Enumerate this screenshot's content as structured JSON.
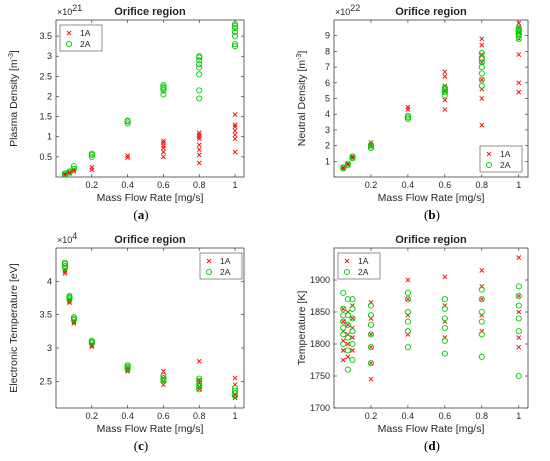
{
  "chart_data": [
    {
      "type": "scatter",
      "title": "Orifice region",
      "xlabel": "Mass Flow Rate [mg/s]",
      "ylabel": "Plasma Density [m",
      "ylabel_exp": "-3",
      "ylabel_close": "]",
      "yscale_base": "×10",
      "yscale_exp": "21",
      "caption_pre": "(",
      "caption": "a",
      "caption_post": ")",
      "xlim": [
        0,
        1.05
      ],
      "ylim": [
        0,
        3.9
      ],
      "xticks": [
        0.2,
        0.4,
        0.6,
        0.8,
        1
      ],
      "xtick_labels": [
        "0.2",
        "0.4",
        "0.6",
        "0.8",
        "1"
      ],
      "yticks": [
        0.5,
        1,
        1.5,
        2,
        2.5,
        3,
        3.5
      ],
      "ytick_labels": [
        "0.5",
        "1",
        "1.5",
        "2",
        "2.5",
        "3",
        "3.5"
      ],
      "legend_position": "top-left",
      "series": [
        {
          "name": "1A",
          "marker": "x",
          "color": "#ff0000",
          "x": [
            0.05,
            0.05,
            0.075,
            0.075,
            0.1,
            0.1,
            0.2,
            0.2,
            0.4,
            0.4,
            0.6,
            0.6,
            0.6,
            0.6,
            0.6,
            0.6,
            0.8,
            0.8,
            0.8,
            0.8,
            0.8,
            0.8,
            0.8,
            0.8,
            1,
            1,
            1,
            1,
            1,
            1,
            1
          ],
          "y": [
            0.05,
            0.08,
            0.09,
            0.12,
            0.14,
            0.18,
            0.18,
            0.24,
            0.48,
            0.53,
            0.5,
            0.62,
            0.72,
            0.78,
            0.85,
            0.9,
            0.35,
            0.55,
            0.68,
            0.8,
            0.95,
            1.0,
            1.05,
            1.1,
            0.62,
            0.95,
            1.05,
            1.15,
            1.25,
            1.3,
            1.55
          ]
        },
        {
          "name": "2A",
          "marker": "o",
          "color": "#00cc00",
          "x": [
            0.05,
            0.05,
            0.075,
            0.075,
            0.1,
            0.1,
            0.2,
            0.2,
            0.2,
            0.4,
            0.4,
            0.4,
            0.6,
            0.6,
            0.6,
            0.6,
            0.6,
            0.8,
            0.8,
            0.8,
            0.8,
            0.8,
            0.8,
            0.8,
            0.8,
            1,
            1,
            1,
            1,
            1,
            1,
            1
          ],
          "y": [
            0.06,
            0.09,
            0.11,
            0.14,
            0.2,
            0.27,
            0.5,
            0.55,
            0.58,
            1.33,
            1.38,
            1.4,
            2.05,
            2.15,
            2.2,
            2.23,
            2.28,
            1.95,
            2.15,
            2.55,
            2.72,
            2.8,
            2.9,
            2.97,
            3.0,
            3.25,
            3.3,
            3.5,
            3.6,
            3.7,
            3.75,
            3.8
          ]
        }
      ]
    },
    {
      "type": "scatter",
      "title": "Orifice region",
      "xlabel": "Mass Flow Rate [mg/s]",
      "ylabel": "Neutral Density [m",
      "ylabel_exp": "-3",
      "ylabel_close": "]",
      "yscale_base": "×10",
      "yscale_exp": "22",
      "caption_pre": "(",
      "caption": "b",
      "caption_post": ")",
      "xlim": [
        0,
        1.05
      ],
      "ylim": [
        0,
        10
      ],
      "xticks": [
        0.2,
        0.4,
        0.6,
        0.8,
        1
      ],
      "xtick_labels": [
        "0.2",
        "0.4",
        "0.6",
        "0.8",
        "1"
      ],
      "yticks": [
        1,
        2,
        3,
        4,
        5,
        6,
        7,
        8,
        9
      ],
      "ytick_labels": [
        "1",
        "2",
        "3",
        "4",
        "5",
        "6",
        "7",
        "8",
        "9"
      ],
      "legend_position": "bottom-right",
      "series": [
        {
          "name": "1A",
          "marker": "x",
          "color": "#ff0000",
          "x": [
            0.05,
            0.05,
            0.075,
            0.075,
            0.1,
            0.1,
            0.2,
            0.2,
            0.4,
            0.4,
            0.6,
            0.6,
            0.6,
            0.6,
            0.6,
            0.6,
            0.8,
            0.8,
            0.8,
            0.8,
            0.8,
            0.8,
            0.8,
            0.8,
            1,
            1,
            1,
            1,
            1,
            1,
            1
          ],
          "y": [
            0.55,
            0.6,
            0.8,
            0.85,
            1.2,
            1.3,
            2.0,
            2.2,
            4.3,
            4.45,
            4.3,
            4.9,
            5.5,
            5.8,
            6.4,
            6.7,
            3.3,
            5.0,
            5.6,
            6.2,
            7.3,
            7.8,
            8.4,
            8.8,
            5.4,
            6.0,
            7.8,
            8.8,
            9.2,
            9.5,
            9.8
          ]
        },
        {
          "name": "2A",
          "marker": "o",
          "color": "#00cc00",
          "x": [
            0.05,
            0.05,
            0.075,
            0.075,
            0.1,
            0.1,
            0.2,
            0.2,
            0.2,
            0.4,
            0.4,
            0.4,
            0.6,
            0.6,
            0.6,
            0.6,
            0.6,
            0.8,
            0.8,
            0.8,
            0.8,
            0.8,
            0.8,
            0.8,
            0.8,
            1,
            1,
            1,
            1,
            1,
            1,
            1
          ],
          "y": [
            0.55,
            0.6,
            0.75,
            0.85,
            1.2,
            1.3,
            1.85,
            1.95,
            2.05,
            3.7,
            3.8,
            3.9,
            5.2,
            5.4,
            5.5,
            5.6,
            5.7,
            5.8,
            6.2,
            6.6,
            7.0,
            7.3,
            7.5,
            7.6,
            7.9,
            8.8,
            9.0,
            9.1,
            9.2,
            9.3,
            9.4,
            9.5
          ]
        }
      ]
    },
    {
      "type": "scatter",
      "title": "Orifice region",
      "xlabel": "Mass Flow Rate [mg/s]",
      "ylabel": "Electronic Temperature [eV]",
      "ylabel_exp": "",
      "ylabel_close": "",
      "yscale_base": "×10",
      "yscale_exp": "4",
      "caption_pre": "(",
      "caption": "c",
      "caption_post": ")",
      "xlim": [
        0,
        1.05
      ],
      "ylim": [
        2.1,
        4.5
      ],
      "xticks": [
        0.2,
        0.4,
        0.6,
        0.8,
        1
      ],
      "xtick_labels": [
        "0.2",
        "0.4",
        "0.6",
        "0.8",
        "1"
      ],
      "yticks": [
        2.5,
        3,
        3.5,
        4
      ],
      "ytick_labels": [
        "2.5",
        "3",
        "3.5",
        "4"
      ],
      "legend_position": "top-right",
      "series": [
        {
          "name": "1A",
          "marker": "x",
          "color": "#ff0000",
          "x": [
            0.05,
            0.05,
            0.05,
            0.075,
            0.075,
            0.075,
            0.1,
            0.1,
            0.1,
            0.2,
            0.2,
            0.2,
            0.4,
            0.4,
            0.4,
            0.6,
            0.6,
            0.6,
            0.6,
            0.8,
            0.8,
            0.8,
            0.8,
            0.8,
            1,
            1,
            1,
            1
          ],
          "y": [
            4.12,
            4.15,
            4.18,
            3.68,
            3.7,
            3.72,
            3.37,
            3.39,
            3.41,
            3.02,
            3.04,
            3.06,
            2.65,
            2.67,
            2.7,
            2.45,
            2.5,
            2.55,
            2.65,
            2.38,
            2.42,
            2.48,
            2.52,
            2.8,
            2.25,
            2.3,
            2.45,
            2.55
          ]
        },
        {
          "name": "2A",
          "marker": "o",
          "color": "#00cc00",
          "x": [
            0.05,
            0.05,
            0.05,
            0.05,
            0.075,
            0.075,
            0.075,
            0.075,
            0.1,
            0.1,
            0.1,
            0.2,
            0.2,
            0.2,
            0.4,
            0.4,
            0.4,
            0.4,
            0.6,
            0.6,
            0.6,
            0.6,
            0.8,
            0.8,
            0.8,
            0.8,
            0.8,
            1,
            1,
            1,
            1
          ],
          "y": [
            4.2,
            4.23,
            4.26,
            4.28,
            3.73,
            3.75,
            3.77,
            3.78,
            3.42,
            3.44,
            3.46,
            3.07,
            3.09,
            3.11,
            2.68,
            2.7,
            2.72,
            2.74,
            2.5,
            2.52,
            2.55,
            2.58,
            2.38,
            2.42,
            2.46,
            2.5,
            2.54,
            2.28,
            2.32,
            2.36,
            2.4
          ]
        }
      ]
    },
    {
      "type": "scatter",
      "title": "Orifice region",
      "xlabel": "Mass Flow Rate [mg/s]",
      "ylabel": "Temperature [K]",
      "ylabel_exp": "",
      "ylabel_close": "",
      "yscale_base": "",
      "yscale_exp": "",
      "caption_pre": "(",
      "caption": "d",
      "caption_post": ")",
      "xlim": [
        0,
        1.05
      ],
      "ylim": [
        1700,
        1950
      ],
      "xticks": [
        0.2,
        0.4,
        0.6,
        0.8,
        1
      ],
      "xtick_labels": [
        "0.2",
        "0.4",
        "0.6",
        "0.8",
        "1"
      ],
      "yticks": [
        1700,
        1750,
        1800,
        1850,
        1900
      ],
      "ytick_labels": [
        "1700",
        "1750",
        "1800",
        "1850",
        "1900"
      ],
      "legend_position": "top-left",
      "series": [
        {
          "name": "1A",
          "marker": "x",
          "color": "#ff0000",
          "x": [
            0.05,
            0.05,
            0.05,
            0.05,
            0.05,
            0.05,
            0.075,
            0.075,
            0.075,
            0.075,
            0.075,
            0.1,
            0.1,
            0.1,
            0.1,
            0.1,
            0.2,
            0.2,
            0.2,
            0.2,
            0.2,
            0.2,
            0.4,
            0.4,
            0.4,
            0.4,
            0.6,
            0.6,
            0.6,
            0.6,
            0.8,
            0.8,
            0.8,
            0.8,
            0.8,
            1,
            1,
            1,
            1,
            1
          ],
          "y": [
            1775,
            1790,
            1805,
            1820,
            1835,
            1855,
            1780,
            1800,
            1815,
            1830,
            1850,
            1790,
            1810,
            1825,
            1840,
            1860,
            1745,
            1770,
            1795,
            1815,
            1840,
            1865,
            1815,
            1845,
            1870,
            1900,
            1810,
            1835,
            1860,
            1905,
            1820,
            1845,
            1870,
            1890,
            1915,
            1795,
            1810,
            1850,
            1875,
            1935
          ]
        },
        {
          "name": "2A",
          "marker": "o",
          "color": "#00cc00",
          "x": [
            0.05,
            0.05,
            0.05,
            0.05,
            0.05,
            0.05,
            0.05,
            0.075,
            0.075,
            0.075,
            0.075,
            0.075,
            0.075,
            0.1,
            0.1,
            0.1,
            0.1,
            0.1,
            0.1,
            0.2,
            0.2,
            0.2,
            0.2,
            0.2,
            0.2,
            0.4,
            0.4,
            0.4,
            0.4,
            0.4,
            0.4,
            0.6,
            0.6,
            0.6,
            0.6,
            0.6,
            0.6,
            0.8,
            0.8,
            0.8,
            0.8,
            0.8,
            0.8,
            1,
            1,
            1,
            1,
            1,
            1
          ],
          "y": [
            1800,
            1815,
            1825,
            1835,
            1845,
            1855,
            1880,
            1760,
            1790,
            1810,
            1830,
            1845,
            1870,
            1775,
            1800,
            1820,
            1840,
            1855,
            1870,
            1770,
            1795,
            1815,
            1830,
            1845,
            1860,
            1795,
            1820,
            1835,
            1850,
            1870,
            1880,
            1785,
            1805,
            1825,
            1840,
            1855,
            1870,
            1780,
            1815,
            1835,
            1850,
            1870,
            1885,
            1750,
            1820,
            1840,
            1860,
            1875,
            1890
          ]
        }
      ]
    }
  ]
}
